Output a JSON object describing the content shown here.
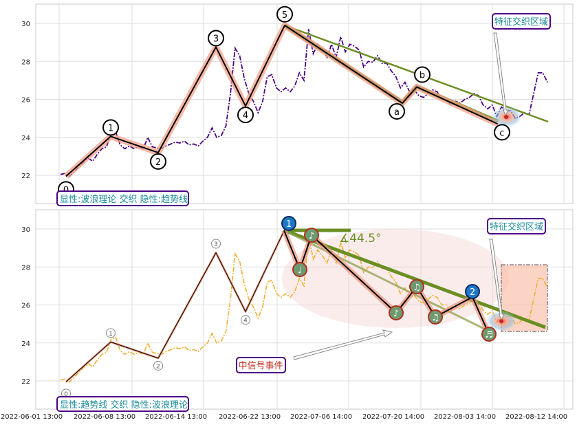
{
  "chart_data": [
    {
      "type": "line",
      "panel": "top",
      "ylim": [
        20.5,
        31.0
      ],
      "yticks": [
        22,
        24,
        26,
        28,
        30
      ],
      "xticks": [
        "2022-06-01 13:00",
        "2022-06-08 13:00",
        "2022-06-14 13:00",
        "2022-06-22 13:00",
        "2022-07-06 14:00",
        "2022-07-20 14:00",
        "2022-08-03 14:00",
        "2022-08-12 14:00"
      ],
      "grid": true,
      "price_series": {
        "color": "#4b0082",
        "style": "dash-dot",
        "values": [
          22.05,
          22.1,
          21.95,
          22.2,
          22.45,
          22.7,
          22.9,
          22.75,
          23.1,
          23.4,
          23.5,
          24.2,
          24.3,
          23.6,
          23.4,
          23.55,
          23.4,
          23.5,
          23.4,
          24.0,
          23.5,
          23.45,
          23.4,
          23.55,
          23.65,
          23.75,
          23.7,
          23.8,
          23.6,
          23.65,
          23.55,
          23.8,
          24.0,
          24.5,
          24.0,
          24.1,
          24.6,
          26.3,
          28.7,
          28.3,
          27.1,
          26.3,
          25.9,
          25.3,
          25.9,
          27.2,
          27.3,
          26.6,
          26.4,
          26.6,
          26.4,
          26.7,
          27.4,
          27.0,
          29.7,
          28.4,
          28.9,
          28.6,
          28.2,
          28.9,
          28.2,
          29.3,
          28.5,
          28.9,
          28.8,
          28.6,
          27.7,
          28.0,
          27.95,
          28.3,
          27.9,
          27.9,
          27.5,
          27.2,
          26.6,
          26.9,
          26.4,
          26.5,
          26.2,
          26.1,
          26.3,
          26.5,
          26.4,
          26.0,
          26.0,
          25.7,
          25.9,
          25.8,
          26.0,
          26.1,
          26.3,
          26.2,
          25.7,
          25.5,
          25.7,
          25.1,
          25.6,
          25.4,
          25.4,
          25.0,
          25.1,
          25.3,
          25.2,
          26.3,
          27.4,
          27.4,
          26.9
        ]
      },
      "wave_labels": [
        "0",
        "1",
        "2",
        "3",
        "4",
        "5",
        "a",
        "b",
        "c"
      ],
      "wave_values": [
        21.95,
        24.05,
        23.2,
        28.75,
        25.65,
        29.9,
        25.8,
        26.65,
        24.7
      ],
      "text_box": "显性:波浪理论 交织 隐性:趋势线",
      "annotation": "特征交织区域"
    },
    {
      "type": "line",
      "panel": "bottom",
      "ylim": [
        20.5,
        31.0
      ],
      "yticks": [
        22,
        24,
        26,
        28,
        30
      ],
      "xticks": [
        "2022-06-01 13:00",
        "2022-06-08 13:00",
        "2022-06-14 13:00",
        "2022-06-22 13:00",
        "2022-07-06 14:00",
        "2022-07-20 14:00",
        "2022-08-03 14:00",
        "2022-08-12 14:00"
      ],
      "grid": true,
      "price_series": {
        "color": "#f0b030",
        "style": "dash-dot",
        "values": [
          22.05,
          22.1,
          21.95,
          22.2,
          22.45,
          22.7,
          22.9,
          22.75,
          23.1,
          23.4,
          23.5,
          24.2,
          24.3,
          23.6,
          23.4,
          23.55,
          23.4,
          23.5,
          23.4,
          24.0,
          23.5,
          23.45,
          23.4,
          23.55,
          23.65,
          23.75,
          23.7,
          23.8,
          23.6,
          23.65,
          23.55,
          23.8,
          24.0,
          24.5,
          24.0,
          24.1,
          24.6,
          26.3,
          28.7,
          28.3,
          27.1,
          26.3,
          25.9,
          25.3,
          25.9,
          27.2,
          27.3,
          26.6,
          26.4,
          26.6,
          26.4,
          26.7,
          27.4,
          27.0,
          29.7,
          28.4,
          28.9,
          28.6,
          28.2,
          28.9,
          28.2,
          29.3,
          28.5,
          28.9,
          28.8,
          28.6,
          27.7,
          28.0,
          27.95,
          28.3,
          27.9,
          27.9,
          27.5,
          27.2,
          26.6,
          26.9,
          26.4,
          26.5,
          26.2,
          26.1,
          26.3,
          26.5,
          26.4,
          26.0,
          26.0,
          25.7,
          25.9,
          25.8,
          26.0,
          26.1,
          26.3,
          26.2,
          25.7,
          25.5,
          25.7,
          25.1,
          25.6,
          25.4,
          25.4,
          25.0,
          25.1,
          25.3,
          25.2,
          26.3,
          27.4,
          27.4,
          26.9
        ]
      },
      "wave_labels": [
        "0",
        "1",
        "2",
        "3",
        "4"
      ],
      "wave_values": [
        21.95,
        24.05,
        23.2,
        28.75,
        25.65
      ],
      "note_labels": [
        "♩",
        "♪",
        "♪",
        "♫",
        "♫",
        "♬"
      ],
      "trend_labels": [
        "1",
        "2"
      ],
      "angle_label": "∡44.5°",
      "event_label": "中信号事件",
      "text_box": "显性:趋势线 交织 隐性:波浪理论",
      "annotation": "特征交织区域"
    }
  ]
}
